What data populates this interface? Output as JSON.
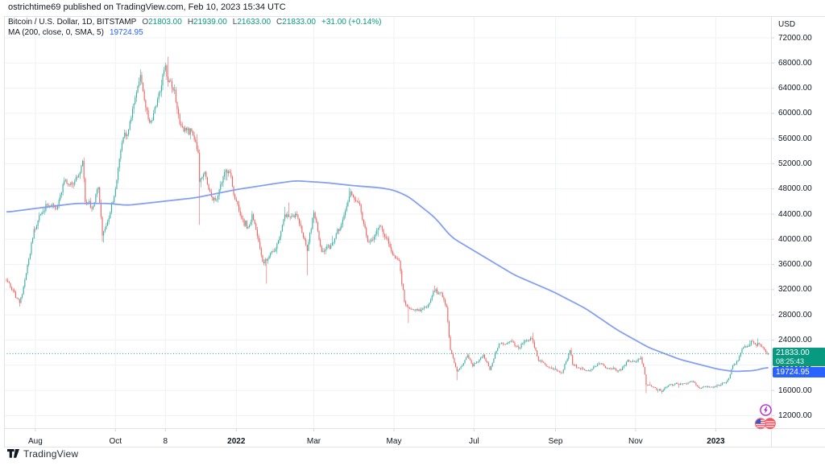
{
  "header": {
    "attribution": "ostrichtime69 published on TradingView.com, Feb 10, 2023 15:34 UTC"
  },
  "legend": {
    "series_title": "Bitcoin / U.S. Dollar, 1D, BITSTAMP",
    "o_label": "O",
    "o_value": "21803.00",
    "h_label": "H",
    "h_value": "21939.00",
    "l_label": "L",
    "l_value": "21633.00",
    "c_label": "C",
    "c_value": "21833.00",
    "change": "+31.00 (+0.14%)",
    "ma_title": "MA (200, close, 0, SMA, 5)",
    "ma_value": "19724.95"
  },
  "price_scale": {
    "currency": "USD",
    "price_badge": {
      "value": "21833.00",
      "countdown": "08:25:43"
    },
    "ma_badge": {
      "value": "19724.95"
    }
  },
  "footer": {
    "brand": "TradingView"
  },
  "colors": {
    "up": "#26a69a",
    "down": "#ef5350",
    "ma_line": "#7e9bf2",
    "accent_green": "#089981",
    "accent_blue": "#2962ff",
    "grid": "#eef1f7",
    "border": "#e0e3eb",
    "text": "#131722",
    "price_line": "#089981",
    "bubble_purple": "#b32ad6",
    "bubble_red": "#f7525f",
    "flag_blue": "#3c56c5"
  },
  "chart_data": {
    "type": "candlestick",
    "title": "Bitcoin / U.S. Dollar",
    "exchange": "BITSTAMP",
    "interval": "1D",
    "last_bar": {
      "date": "2023-02-10",
      "open": 21803,
      "high": 21939,
      "low": 21633,
      "close": 21833,
      "change": 31,
      "change_pct": 0.14
    },
    "indicator": {
      "name": "MA",
      "params": [
        200,
        "close",
        0,
        "SMA",
        5
      ],
      "value": 19724.95
    },
    "current_price": 21833,
    "grid": true,
    "legend_position": "top-left",
    "y_axis": {
      "side": "right",
      "currency": "USD",
      "ylim": [
        10000,
        75450
      ],
      "ticks": [
        72000,
        68000,
        64000,
        60000,
        56000,
        52000,
        48000,
        44000,
        40000,
        36000,
        32000,
        28000,
        24000,
        20000,
        16000,
        12000
      ],
      "tick_labels": [
        "72000.00",
        "68000.00",
        "64000.00",
        "60000.00",
        "56000.00",
        "52000.00",
        "48000.00",
        "44000.00",
        "40000.00",
        "36000.00",
        "32000.00",
        "28000.00",
        "24000.00",
        "20000.00",
        "16000.00",
        "12000.00"
      ]
    },
    "x_axis": {
      "start_date": "2021-07-10",
      "end_date": "2023-02-10",
      "ticks": [
        {
          "label": "Aug",
          "date": "2021-08-01",
          "bold": false
        },
        {
          "label": "Oct",
          "date": "2021-10-01",
          "bold": false
        },
        {
          "label": "8",
          "date": "2021-11-08",
          "bold": false
        },
        {
          "label": "2022",
          "date": "2022-01-01",
          "bold": true
        },
        {
          "label": "Mar",
          "date": "2022-03-01",
          "bold": false
        },
        {
          "label": "May",
          "date": "2022-05-01",
          "bold": false
        },
        {
          "label": "Jul",
          "date": "2022-07-01",
          "bold": false
        },
        {
          "label": "Sep",
          "date": "2022-09-01",
          "bold": false
        },
        {
          "label": "Nov",
          "date": "2022-11-01",
          "bold": false
        },
        {
          "label": "2023",
          "date": "2023-01-01",
          "bold": true
        }
      ]
    },
    "close_keyframes": [
      [
        "2021-07-10",
        33500
      ],
      [
        "2021-07-16",
        31500
      ],
      [
        "2021-07-20",
        29800
      ],
      [
        "2021-07-25",
        34500
      ],
      [
        "2021-07-31",
        41500
      ],
      [
        "2021-08-07",
        44600
      ],
      [
        "2021-08-10",
        45600
      ],
      [
        "2021-08-17",
        44700
      ],
      [
        "2021-08-23",
        49300
      ],
      [
        "2021-08-27",
        48800
      ],
      [
        "2021-09-03",
        50000
      ],
      [
        "2021-09-06",
        52300
      ],
      [
        "2021-09-08",
        46100
      ],
      [
        "2021-09-13",
        44900
      ],
      [
        "2021-09-18",
        48300
      ],
      [
        "2021-09-21",
        40700
      ],
      [
        "2021-09-26",
        43200
      ],
      [
        "2021-10-01",
        48200
      ],
      [
        "2021-10-06",
        55300
      ],
      [
        "2021-10-11",
        57500
      ],
      [
        "2021-10-15",
        61600
      ],
      [
        "2021-10-20",
        66000
      ],
      [
        "2021-10-24",
        60900
      ],
      [
        "2021-10-27",
        58500
      ],
      [
        "2021-11-01",
        61300
      ],
      [
        "2021-11-08",
        67600
      ],
      [
        "2021-11-10",
        64900
      ],
      [
        "2021-11-15",
        63600
      ],
      [
        "2021-11-19",
        58100
      ],
      [
        "2021-11-24",
        57200
      ],
      [
        "2021-11-28",
        57300
      ],
      [
        "2021-12-03",
        53600
      ],
      [
        "2021-12-04",
        49200
      ],
      [
        "2021-12-08",
        50700
      ],
      [
        "2021-12-13",
        46700
      ],
      [
        "2021-12-17",
        46200
      ],
      [
        "2021-12-23",
        50800
      ],
      [
        "2021-12-27",
        50700
      ],
      [
        "2021-12-31",
        46200
      ],
      [
        "2022-01-05",
        43400
      ],
      [
        "2022-01-10",
        41800
      ],
      [
        "2022-01-13",
        43900
      ],
      [
        "2022-01-21",
        36400
      ],
      [
        "2022-01-24",
        36700
      ],
      [
        "2022-01-31",
        38400
      ],
      [
        "2022-02-07",
        43900
      ],
      [
        "2022-02-10",
        43500
      ],
      [
        "2022-02-16",
        43900
      ],
      [
        "2022-02-24",
        38300
      ],
      [
        "2022-03-01",
        44400
      ],
      [
        "2022-03-07",
        38000
      ],
      [
        "2022-03-15",
        39300
      ],
      [
        "2022-03-22",
        42400
      ],
      [
        "2022-03-29",
        47400
      ],
      [
        "2022-04-05",
        45500
      ],
      [
        "2022-04-11",
        39500
      ],
      [
        "2022-04-21",
        42200
      ],
      [
        "2022-04-30",
        37600
      ],
      [
        "2022-05-05",
        36500
      ],
      [
        "2022-05-09",
        30100
      ],
      [
        "2022-05-12",
        29000
      ],
      [
        "2022-05-19",
        28700
      ],
      [
        "2022-05-26",
        29200
      ],
      [
        "2022-05-31",
        31800
      ],
      [
        "2022-06-06",
        31400
      ],
      [
        "2022-06-10",
        29100
      ],
      [
        "2022-06-13",
        22500
      ],
      [
        "2022-06-18",
        19000
      ],
      [
        "2022-06-26",
        21500
      ],
      [
        "2022-06-30",
        19900
      ],
      [
        "2022-07-08",
        21600
      ],
      [
        "2022-07-13",
        19300
      ],
      [
        "2022-07-20",
        23300
      ],
      [
        "2022-07-29",
        23800
      ],
      [
        "2022-08-04",
        22600
      ],
      [
        "2022-08-08",
        23800
      ],
      [
        "2022-08-14",
        24300
      ],
      [
        "2022-08-19",
        20800
      ],
      [
        "2022-08-28",
        19600
      ],
      [
        "2022-09-06",
        18800
      ],
      [
        "2022-09-12",
        22400
      ],
      [
        "2022-09-14",
        20200
      ],
      [
        "2022-09-19",
        19500
      ],
      [
        "2022-09-27",
        19100
      ],
      [
        "2022-10-04",
        20300
      ],
      [
        "2022-10-13",
        19400
      ],
      [
        "2022-10-21",
        19200
      ],
      [
        "2022-10-26",
        20800
      ],
      [
        "2022-11-01",
        20500
      ],
      [
        "2022-11-05",
        21300
      ],
      [
        "2022-11-08",
        18500
      ],
      [
        "2022-11-09",
        16800
      ],
      [
        "2022-11-14",
        16600
      ],
      [
        "2022-11-21",
        15800
      ],
      [
        "2022-11-24",
        16600
      ],
      [
        "2022-12-01",
        17100
      ],
      [
        "2022-12-06",
        17000
      ],
      [
        "2022-12-15",
        17400
      ],
      [
        "2022-12-19",
        16400
      ],
      [
        "2022-12-30",
        16600
      ],
      [
        "2023-01-04",
        16850
      ],
      [
        "2023-01-08",
        17200
      ],
      [
        "2023-01-11",
        17900
      ],
      [
        "2023-01-14",
        19900
      ],
      [
        "2023-01-18",
        20700
      ],
      [
        "2023-01-21",
        22700
      ],
      [
        "2023-01-25",
        23050
      ],
      [
        "2023-01-29",
        23700
      ],
      [
        "2023-02-01",
        23100
      ],
      [
        "2023-02-02",
        23500
      ],
      [
        "2023-02-06",
        22800
      ],
      [
        "2023-02-09",
        21900
      ],
      [
        "2023-02-10",
        21833
      ]
    ],
    "ma200_keyframes": [
      [
        "2021-07-10",
        44300
      ],
      [
        "2021-08-01",
        44900
      ],
      [
        "2021-09-01",
        45700
      ],
      [
        "2021-09-25",
        45700
      ],
      [
        "2021-10-10",
        45400
      ],
      [
        "2021-11-01",
        45900
      ],
      [
        "2021-12-01",
        46600
      ],
      [
        "2022-01-01",
        47900
      ],
      [
        "2022-02-01",
        48900
      ],
      [
        "2022-02-15",
        49300
      ],
      [
        "2022-03-10",
        49000
      ],
      [
        "2022-04-01",
        48500
      ],
      [
        "2022-04-20",
        48200
      ],
      [
        "2022-05-01",
        47800
      ],
      [
        "2022-05-12",
        46800
      ],
      [
        "2022-06-01",
        43500
      ],
      [
        "2022-06-14",
        40300
      ],
      [
        "2022-07-08",
        37300
      ],
      [
        "2022-08-01",
        34300
      ],
      [
        "2022-08-30",
        31700
      ],
      [
        "2022-09-24",
        29000
      ],
      [
        "2022-10-18",
        25600
      ],
      [
        "2022-11-11",
        22800
      ],
      [
        "2022-12-05",
        20900
      ],
      [
        "2023-01-03",
        19350
      ],
      [
        "2023-01-15",
        19000
      ],
      [
        "2023-01-31",
        19150
      ],
      [
        "2023-02-10",
        19724.95
      ]
    ],
    "wick_highs": [
      [
        "2021-09-07",
        52950
      ],
      [
        "2021-10-20",
        67000
      ],
      [
        "2021-11-10",
        69000
      ],
      [
        "2022-02-10",
        45850
      ],
      [
        "2022-03-28",
        48200
      ],
      [
        "2022-08-15",
        25200
      ],
      [
        "2022-09-13",
        22800
      ],
      [
        "2023-02-02",
        24250
      ]
    ],
    "wick_lows": [
      [
        "2021-07-20",
        29300
      ],
      [
        "2021-09-21",
        39600
      ],
      [
        "2021-12-04",
        42300
      ],
      [
        "2022-01-24",
        32950
      ],
      [
        "2022-02-24",
        34300
      ],
      [
        "2022-05-12",
        26700
      ],
      [
        "2022-06-18",
        17600
      ],
      [
        "2022-11-09",
        15550
      ],
      [
        "2022-11-21",
        15480
      ]
    ]
  }
}
